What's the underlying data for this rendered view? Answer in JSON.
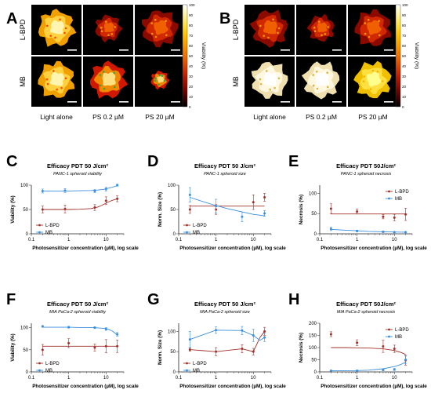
{
  "heatmaps": {
    "panels": [
      {
        "letter": "A",
        "row_labels": [
          "L-BPD",
          "MB"
        ],
        "col_labels": [
          "Light alone",
          "PS 0.2 µM",
          "PS 20 µM"
        ],
        "cells": [
          [
            "high",
            "low",
            "low"
          ],
          [
            "high",
            "mixed",
            "mixed"
          ]
        ],
        "colorbar": {
          "label": "Viability (%)",
          "ticks": [
            "0",
            "10",
            "20",
            "30",
            "40",
            "50",
            "60",
            "70",
            "80",
            "90",
            "100"
          ]
        }
      },
      {
        "letter": "B",
        "row_labels": [
          "L-BPD",
          "MB"
        ],
        "col_labels": [
          "Light alone",
          "PS 0.2 µM",
          "PS 20 µM"
        ],
        "cells": [
          [
            "low",
            "low",
            "low"
          ],
          [
            "high",
            "high",
            "high"
          ]
        ],
        "colorbar": {
          "label": "Viability (%)",
          "ticks": [
            "0",
            "10",
            "20",
            "30",
            "40",
            "50",
            "60",
            "70",
            "80",
            "90",
            "100"
          ]
        }
      }
    ]
  },
  "colors": {
    "lbpd": "#a0302a",
    "mb": "#3a8edc",
    "axis": "#222222"
  },
  "chart_data": [
    {
      "letter": "C",
      "type": "scatter",
      "title": "Efficacy PDT 50 J/cm²",
      "subtitle": "PANC-1 spheroid viability",
      "xlabel": "Photosensitizer concentration (µM), log scale",
      "ylabel": "Viability (%)",
      "xscale": "log",
      "xlim": [
        0.1,
        30
      ],
      "ylim": [
        0,
        100
      ],
      "xticks": [
        0.1,
        1,
        10
      ],
      "xtick_labels": [
        "0.1",
        "1",
        "10"
      ],
      "yticks": [
        0,
        50,
        100
      ],
      "ytick_labels": [
        "0",
        "50",
        "100"
      ],
      "legend": "bottom-left",
      "series": [
        {
          "name": "L-BPD",
          "color": "#a0302a",
          "x": [
            0.2,
            0.8,
            5,
            10,
            20
          ],
          "y": [
            50,
            51,
            54,
            68,
            72
          ],
          "err": [
            7,
            8,
            6,
            8,
            6
          ],
          "fit_x": [
            0.2,
            0.5,
            1,
            2,
            4,
            6,
            8,
            10,
            12,
            15,
            20
          ],
          "fit_y": [
            50,
            50,
            50,
            50.5,
            52,
            55,
            59,
            63,
            66,
            69,
            72
          ]
        },
        {
          "name": "MB",
          "color": "#3a8edc",
          "x": [
            0.2,
            0.8,
            5,
            10,
            20
          ],
          "y": [
            88,
            89,
            88,
            92,
            100
          ],
          "err": [
            4,
            4,
            3,
            4,
            2
          ],
          "fit_x": [
            0.2,
            0.5,
            1,
            2,
            4,
            6,
            8,
            10,
            12,
            15,
            20
          ],
          "fit_y": [
            88,
            88,
            88,
            88.5,
            89,
            90,
            91,
            92.5,
            94,
            96,
            99
          ]
        }
      ]
    },
    {
      "letter": "D",
      "type": "scatter",
      "title": "Efficacy PDT 50 J/cm²",
      "subtitle": "PANC-1 spheroid size",
      "xlabel": "Photosensitizer concentration (µM), log scale",
      "ylabel": "Norm. Size (%)",
      "xscale": "log",
      "xlim": [
        0.1,
        30
      ],
      "ylim": [
        0,
        100
      ],
      "xticks": [
        0.1,
        1,
        10
      ],
      "xtick_labels": [
        "0.1",
        "1",
        "10"
      ],
      "yticks": [
        0,
        50,
        100
      ],
      "ytick_labels": [
        "0",
        "50",
        "100"
      ],
      "legend": "bottom-left",
      "series": [
        {
          "name": "L-BPD",
          "color": "#a0302a",
          "x": [
            0.2,
            1,
            10,
            20
          ],
          "y": [
            50,
            50,
            65,
            75
          ],
          "err": [
            8,
            10,
            15,
            8
          ],
          "fit_x": [
            0.2,
            20
          ],
          "fit_y": [
            57,
            57
          ]
        },
        {
          "name": "MB",
          "color": "#3a8edc",
          "x": [
            0.2,
            1,
            5,
            20
          ],
          "y": [
            80,
            57,
            35,
            42
          ],
          "err": [
            15,
            14,
            10,
            6
          ],
          "fit_x": [
            0.2,
            0.5,
            1,
            2,
            5,
            10,
            20
          ],
          "fit_y": [
            75,
            65,
            58,
            52,
            45,
            40,
            37
          ]
        }
      ]
    },
    {
      "letter": "E",
      "type": "scatter",
      "title": "Efficacy PDT 50J/cm²",
      "subtitle": "PANC-1 spheroid necrosis",
      "xlabel": "Photosensitizer concentration (µM), log scale",
      "ylabel": "Necrosis (%)",
      "xscale": "log",
      "xlim": [
        0.1,
        30
      ],
      "ylim": [
        0,
        120
      ],
      "xticks": [
        0.1,
        1,
        10
      ],
      "xtick_labels": [
        "0.1",
        "1",
        "10"
      ],
      "yticks": [
        0,
        50,
        100
      ],
      "ytick_labels": [
        "0",
        "50",
        "100"
      ],
      "legend": "top-right",
      "series": [
        {
          "name": "L-BPD",
          "color": "#a0302a",
          "x": [
            0.2,
            1,
            5,
            10,
            20
          ],
          "y": [
            62,
            55,
            42,
            40,
            48
          ],
          "err": [
            12,
            6,
            5,
            8,
            15
          ],
          "fit_x": [
            0.2,
            20
          ],
          "fit_y": [
            49,
            49
          ]
        },
        {
          "name": "MB",
          "color": "#3a8edc",
          "x": [
            0.2,
            1,
            5,
            10,
            20
          ],
          "y": [
            12,
            7,
            5,
            4,
            4
          ],
          "err": [
            4,
            2,
            2,
            1,
            1
          ],
          "fit_x": [
            0.2,
            0.5,
            1,
            2,
            5,
            10,
            20
          ],
          "fit_y": [
            11,
            9,
            7.5,
            6,
            5,
            4.5,
            4
          ]
        }
      ]
    },
    {
      "letter": "F",
      "type": "scatter",
      "title": "Efficacy PDT 50 J/cm²",
      "subtitle": "MIA PaCa-2 spheroid viability",
      "xlabel": "Photosensitizer concentration (µM), log scale",
      "ylabel": "Viability (%)",
      "xscale": "log",
      "xlim": [
        0.1,
        30
      ],
      "ylim": [
        0,
        110
      ],
      "xticks": [
        0.1,
        1,
        10
      ],
      "xtick_labels": [
        "0.1",
        "1",
        "10"
      ],
      "yticks": [
        0,
        50,
        100
      ],
      "ytick_labels": [
        "0",
        "50",
        "100"
      ],
      "legend": "bottom-left",
      "series": [
        {
          "name": "L-BPD",
          "color": "#a0302a",
          "x": [
            0.2,
            1,
            5,
            10,
            20
          ],
          "y": [
            50,
            65,
            55,
            58,
            58
          ],
          "err": [
            12,
            10,
            8,
            15,
            14
          ],
          "fit_x": [
            0.2,
            20
          ],
          "fit_y": [
            58,
            58
          ]
        },
        {
          "name": "MB",
          "color": "#3a8edc",
          "x": [
            0.2,
            1,
            5,
            10,
            20
          ],
          "y": [
            103,
            101,
            100,
            97,
            85
          ],
          "err": [
            2,
            2,
            2,
            3,
            4
          ],
          "fit_x": [
            0.2,
            0.5,
            1,
            2,
            5,
            10,
            12,
            15,
            18,
            20
          ],
          "fit_y": [
            101,
            101,
            101,
            100.5,
            100,
            98,
            96,
            92,
            87,
            83
          ]
        }
      ]
    },
    {
      "letter": "G",
      "type": "scatter",
      "title": "Efficacy PDT 50 J/cm²",
      "subtitle": "MIA PaCa-2 spheroid size",
      "xlabel": "Photosensitizer concentration (µM), log scale",
      "ylabel": "Norm. Size (%)",
      "xscale": "log",
      "xlim": [
        0.1,
        30
      ],
      "ylim": [
        0,
        120
      ],
      "xticks": [
        0.1,
        1,
        10
      ],
      "xtick_labels": [
        "0.1",
        "1",
        "10"
      ],
      "yticks": [
        0,
        50,
        100
      ],
      "ytick_labels": [
        "0",
        "50",
        "100"
      ],
      "legend": "bottom-left",
      "series": [
        {
          "name": "L-BPD",
          "color": "#a0302a",
          "x": [
            0.2,
            1,
            5,
            10,
            20
          ],
          "y": [
            55,
            50,
            57,
            50,
            100
          ],
          "err": [
            4,
            10,
            10,
            8,
            10
          ],
          "fit_x": [
            0.2,
            1,
            5,
            10,
            15,
            20
          ],
          "fit_y": [
            55,
            50,
            57,
            50,
            85,
            100
          ]
        },
        {
          "name": "MB",
          "color": "#3a8edc",
          "x": [
            0.2,
            1,
            5,
            10,
            20
          ],
          "y": [
            80,
            103,
            102,
            90,
            85
          ],
          "err": [
            20,
            8,
            10,
            15,
            10
          ],
          "fit_x": [
            0.2,
            1,
            5,
            10,
            15,
            20
          ],
          "fit_y": [
            80,
            103,
            102,
            90,
            78,
            85
          ]
        }
      ]
    },
    {
      "letter": "H",
      "type": "scatter",
      "title": "Efficacy PDT 50J/cm²",
      "subtitle": "MIA PaCa-2 spheroid necrosis",
      "xlabel": "Photosensitizer concentration (µM), log scale",
      "ylabel": "Necrosis (%)",
      "xscale": "log",
      "xlim": [
        0.1,
        30
      ],
      "ylim": [
        0,
        200
      ],
      "xticks": [
        0.1,
        1,
        10
      ],
      "xtick_labels": [
        "0.1",
        "1",
        "10"
      ],
      "yticks": [
        0,
        50,
        100,
        150,
        200
      ],
      "ytick_labels": [
        "0",
        "50",
        "100",
        "150",
        "200"
      ],
      "legend": "top-right",
      "series": [
        {
          "name": "L-BPD",
          "color": "#a0302a",
          "x": [
            0.2,
            1,
            5,
            10,
            20
          ],
          "y": [
            155,
            120,
            105,
            95,
            48
          ],
          "err": [
            10,
            12,
            25,
            15,
            20
          ],
          "fit_x": [
            0.2,
            0.5,
            1,
            2,
            5,
            10,
            15,
            20
          ],
          "fit_y": [
            100,
            100,
            99,
            98,
            95,
            88,
            80,
            72
          ]
        },
        {
          "name": "MB",
          "color": "#3a8edc",
          "x": [
            0.2,
            1,
            5,
            10,
            20
          ],
          "y": [
            5,
            5,
            8,
            10,
            50
          ],
          "err": [
            2,
            2,
            3,
            4,
            15
          ],
          "fit_x": [
            0.2,
            0.5,
            1,
            2,
            5,
            10,
            15,
            20
          ],
          "fit_y": [
            5,
            5,
            5.5,
            7,
            13,
            22,
            31,
            40
          ]
        }
      ]
    }
  ]
}
